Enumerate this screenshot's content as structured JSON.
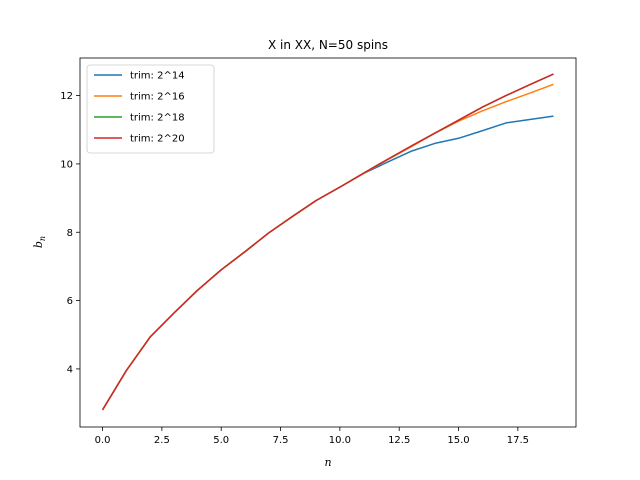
{
  "chart_data": {
    "type": "line",
    "title": "X in XX, N=50 spins",
    "xlabel": "n",
    "ylabel": "b",
    "ylabel_sub": "n",
    "xlim": [
      -0.95,
      19.95
    ],
    "ylim": [
      2.3,
      13.1
    ],
    "xticks": [
      0.0,
      2.5,
      5.0,
      7.5,
      10.0,
      12.5,
      15.0,
      17.5
    ],
    "xtick_labels": [
      "0.0",
      "2.5",
      "5.0",
      "7.5",
      "10.0",
      "12.5",
      "15.0",
      "17.5"
    ],
    "yticks": [
      4,
      6,
      8,
      10,
      12
    ],
    "ytick_labels": [
      "4",
      "6",
      "8",
      "10",
      "12"
    ],
    "grid": false,
    "legend_position": "top-left",
    "x": [
      0,
      1,
      2,
      3,
      4,
      5,
      6,
      7,
      8,
      9,
      10,
      11,
      12,
      13,
      14,
      15,
      16,
      17,
      18,
      19
    ],
    "series": [
      {
        "name": "trim: 2^14",
        "color": "#1f77b4",
        "values": [
          2.8,
          3.95,
          4.93,
          5.63,
          6.3,
          6.9,
          7.43,
          7.98,
          8.46,
          8.93,
          9.32,
          9.72,
          10.05,
          10.37,
          10.6,
          10.75,
          10.97,
          11.2,
          11.3,
          11.4
        ]
      },
      {
        "name": "trim: 2^16",
        "color": "#ff7f0e",
        "values": [
          2.8,
          3.95,
          4.93,
          5.63,
          6.3,
          6.9,
          7.43,
          7.98,
          8.46,
          8.93,
          9.32,
          9.72,
          10.12,
          10.5,
          10.9,
          11.25,
          11.55,
          11.82,
          12.07,
          12.33
        ]
      },
      {
        "name": "trim: 2^18",
        "color": "#2ca02c",
        "values": [
          2.8,
          3.95,
          4.93,
          5.63,
          6.3,
          6.9,
          7.43,
          7.98,
          8.46,
          8.93,
          9.32,
          9.73,
          10.13,
          10.52,
          10.9,
          11.28,
          11.66,
          12.0,
          12.32,
          12.63
        ]
      },
      {
        "name": "trim: 2^20",
        "color": "#d62728",
        "values": [
          2.8,
          3.95,
          4.93,
          5.63,
          6.3,
          6.9,
          7.43,
          7.98,
          8.46,
          8.93,
          9.32,
          9.73,
          10.13,
          10.52,
          10.9,
          11.28,
          11.66,
          12.0,
          12.32,
          12.63
        ]
      }
    ]
  }
}
